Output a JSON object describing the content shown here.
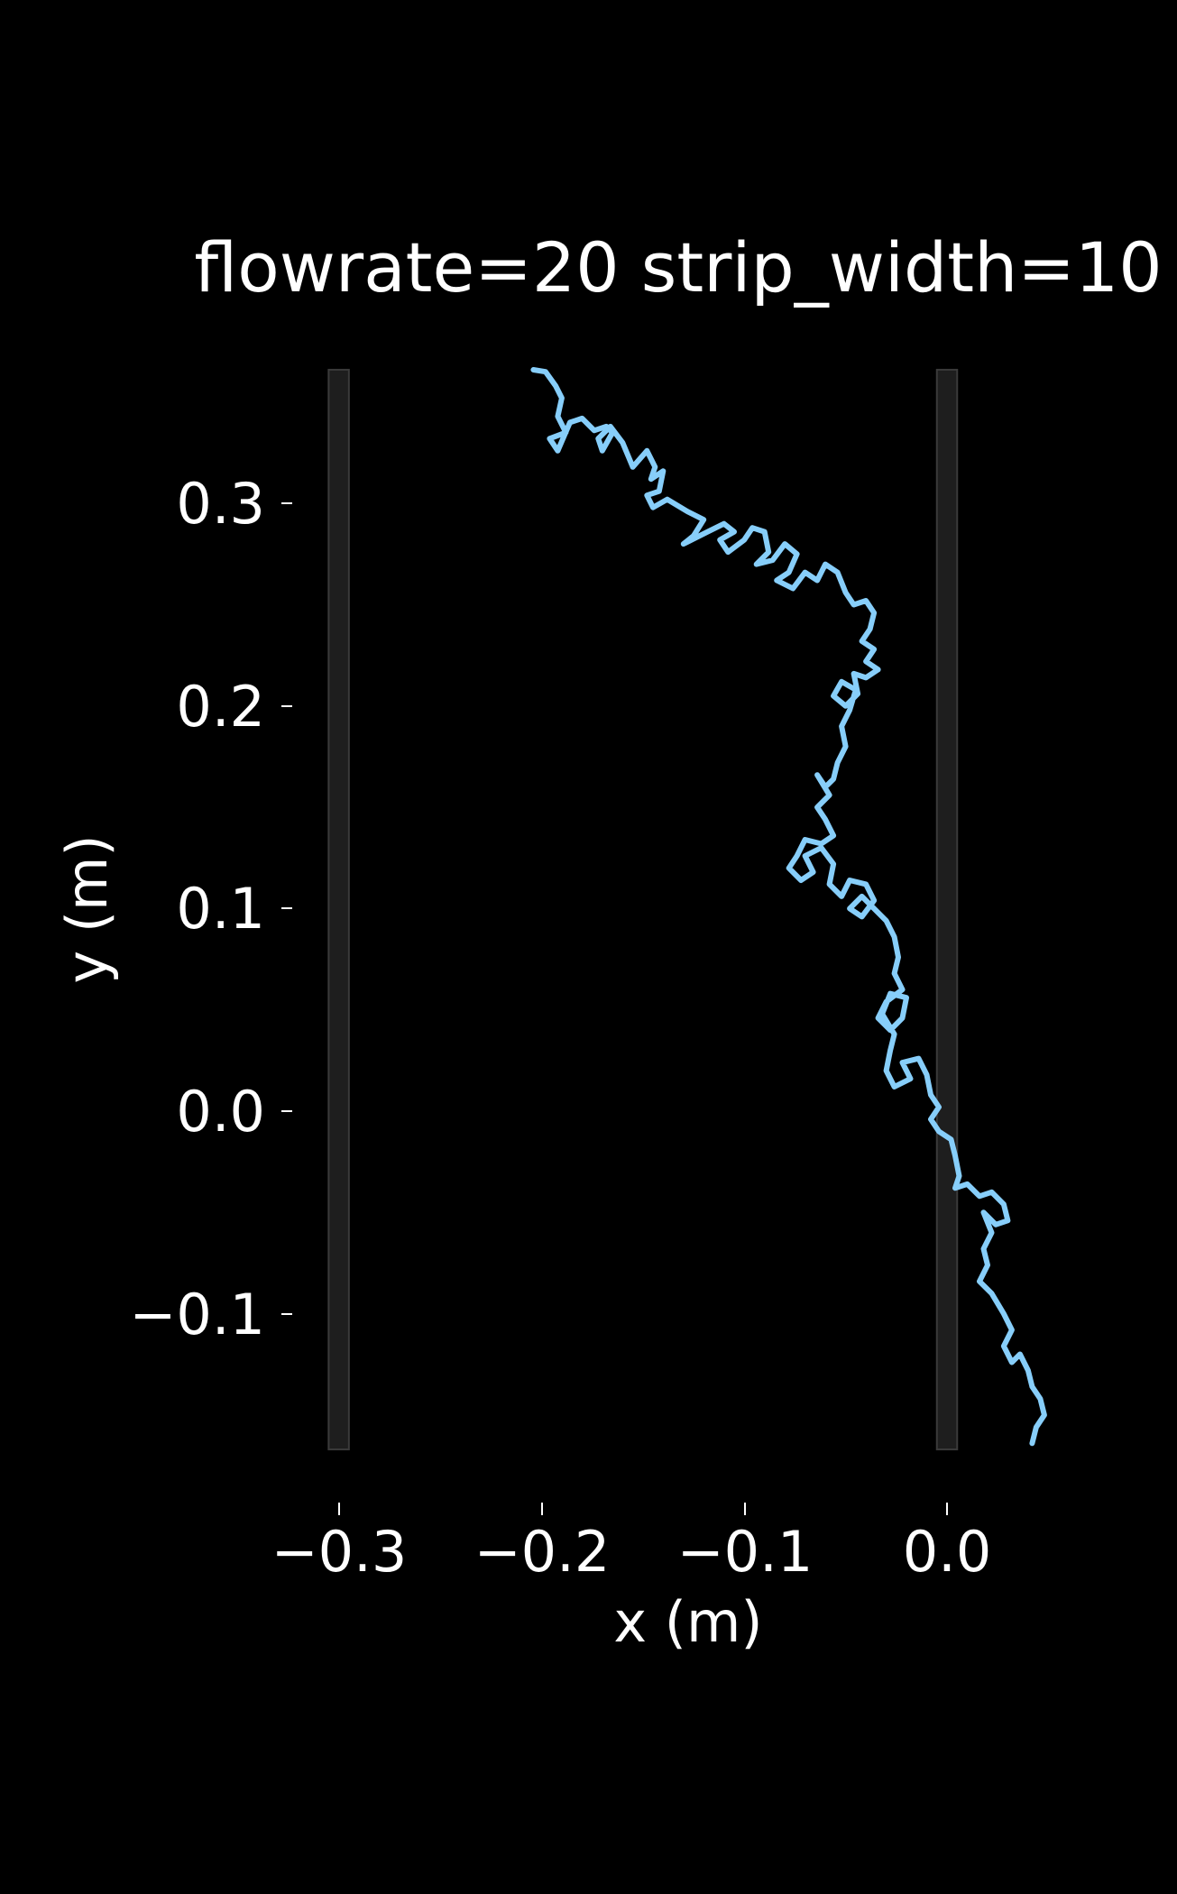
{
  "chart_data": {
    "type": "line",
    "title": "flowrate=20 strip_width=10",
    "xlabel": "x (m)",
    "ylabel": "y (m)",
    "xlim": [
      -0.3,
      0.05
    ],
    "ylim": [
      -0.167,
      0.368
    ],
    "grid": false,
    "x_ticks": [
      "−0.3",
      "−0.2",
      "−0.1",
      "0.0"
    ],
    "y_ticks": [
      "0.3",
      "0.2",
      "0.1",
      "0.0",
      "−0.1"
    ],
    "strips": [
      {
        "x_center": -0.3,
        "width": 0.01,
        "y_range": [
          -0.167,
          0.366
        ]
      },
      {
        "x_center": 0.0,
        "width": 0.01,
        "y_range": [
          -0.167,
          0.366
        ]
      }
    ],
    "series": [
      {
        "color": "#87cefa",
        "points": [
          [
            -0.204,
            0.366
          ],
          [
            -0.198,
            0.365
          ],
          [
            -0.193,
            0.358
          ],
          [
            -0.19,
            0.352
          ],
          [
            -0.192,
            0.343
          ],
          [
            -0.188,
            0.335
          ],
          [
            -0.196,
            0.332
          ],
          [
            -0.192,
            0.326
          ],
          [
            -0.186,
            0.34
          ],
          [
            -0.18,
            0.342
          ],
          [
            -0.174,
            0.336
          ],
          [
            -0.168,
            0.338
          ],
          [
            -0.165,
            0.335
          ],
          [
            -0.17,
            0.326
          ],
          [
            -0.172,
            0.332
          ],
          [
            -0.166,
            0.338
          ],
          [
            -0.16,
            0.33
          ],
          [
            -0.155,
            0.318
          ],
          [
            -0.148,
            0.326
          ],
          [
            -0.144,
            0.318
          ],
          [
            -0.146,
            0.312
          ],
          [
            -0.14,
            0.316
          ],
          [
            -0.142,
            0.306
          ],
          [
            -0.148,
            0.304
          ],
          [
            -0.145,
            0.298
          ],
          [
            -0.138,
            0.302
          ],
          [
            -0.128,
            0.296
          ],
          [
            -0.12,
            0.292
          ],
          [
            -0.125,
            0.284
          ],
          [
            -0.13,
            0.28
          ],
          [
            -0.118,
            0.286
          ],
          [
            -0.11,
            0.29
          ],
          [
            -0.105,
            0.286
          ],
          [
            -0.112,
            0.282
          ],
          [
            -0.108,
            0.276
          ],
          [
            -0.1,
            0.282
          ],
          [
            -0.096,
            0.288
          ],
          [
            -0.09,
            0.286
          ],
          [
            -0.088,
            0.276
          ],
          [
            -0.094,
            0.27
          ],
          [
            -0.086,
            0.272
          ],
          [
            -0.08,
            0.28
          ],
          [
            -0.074,
            0.275
          ],
          [
            -0.078,
            0.266
          ],
          [
            -0.084,
            0.262
          ],
          [
            -0.076,
            0.258
          ],
          [
            -0.07,
            0.266
          ],
          [
            -0.064,
            0.262
          ],
          [
            -0.06,
            0.27
          ],
          [
            -0.054,
            0.266
          ],
          [
            -0.05,
            0.256
          ],
          [
            -0.046,
            0.25
          ],
          [
            -0.04,
            0.252
          ],
          [
            -0.036,
            0.246
          ],
          [
            -0.038,
            0.238
          ],
          [
            -0.042,
            0.232
          ],
          [
            -0.036,
            0.228
          ],
          [
            -0.04,
            0.222
          ],
          [
            -0.034,
            0.218
          ],
          [
            -0.04,
            0.214
          ],
          [
            -0.046,
            0.216
          ],
          [
            -0.044,
            0.206
          ],
          [
            -0.05,
            0.2
          ],
          [
            -0.056,
            0.205
          ],
          [
            -0.052,
            0.212
          ],
          [
            -0.045,
            0.208
          ],
          [
            -0.048,
            0.198
          ],
          [
            -0.052,
            0.19
          ],
          [
            -0.05,
            0.18
          ],
          [
            -0.054,
            0.172
          ],
          [
            -0.056,
            0.164
          ],
          [
            -0.06,
            0.16
          ],
          [
            -0.064,
            0.166
          ],
          [
            -0.058,
            0.156
          ],
          [
            -0.064,
            0.15
          ],
          [
            -0.06,
            0.144
          ],
          [
            -0.056,
            0.136
          ],
          [
            -0.062,
            0.132
          ],
          [
            -0.07,
            0.134
          ],
          [
            -0.074,
            0.126
          ],
          [
            -0.078,
            0.12
          ],
          [
            -0.072,
            0.114
          ],
          [
            -0.066,
            0.118
          ],
          [
            -0.07,
            0.126
          ],
          [
            -0.062,
            0.13
          ],
          [
            -0.056,
            0.122
          ],
          [
            -0.058,
            0.112
          ],
          [
            -0.052,
            0.106
          ],
          [
            -0.048,
            0.114
          ],
          [
            -0.04,
            0.112
          ],
          [
            -0.036,
            0.104
          ],
          [
            -0.042,
            0.096
          ],
          [
            -0.048,
            0.1
          ],
          [
            -0.042,
            0.106
          ],
          [
            -0.036,
            0.1
          ],
          [
            -0.03,
            0.094
          ],
          [
            -0.026,
            0.086
          ],
          [
            -0.024,
            0.076
          ],
          [
            -0.026,
            0.068
          ],
          [
            -0.022,
            0.06
          ],
          [
            -0.03,
            0.054
          ],
          [
            -0.034,
            0.046
          ],
          [
            -0.028,
            0.04
          ],
          [
            -0.022,
            0.046
          ],
          [
            -0.02,
            0.056
          ],
          [
            -0.028,
            0.058
          ],
          [
            -0.032,
            0.048
          ],
          [
            -0.026,
            0.038
          ],
          [
            -0.028,
            0.03
          ],
          [
            -0.03,
            0.02
          ],
          [
            -0.026,
            0.012
          ],
          [
            -0.018,
            0.016
          ],
          [
            -0.022,
            0.024
          ],
          [
            -0.014,
            0.026
          ],
          [
            -0.01,
            0.018
          ],
          [
            -0.008,
            0.008
          ],
          [
            -0.004,
            0.002
          ],
          [
            -0.008,
            -0.004
          ],
          [
            -0.004,
            -0.01
          ],
          [
            0.002,
            -0.014
          ],
          [
            0.004,
            -0.022
          ],
          [
            0.006,
            -0.032
          ],
          [
            0.004,
            -0.038
          ],
          [
            0.01,
            -0.036
          ],
          [
            0.016,
            -0.042
          ],
          [
            0.022,
            -0.04
          ],
          [
            0.028,
            -0.046
          ],
          [
            0.03,
            -0.054
          ],
          [
            0.024,
            -0.056
          ],
          [
            0.018,
            -0.05
          ],
          [
            0.022,
            -0.06
          ],
          [
            0.018,
            -0.068
          ],
          [
            0.02,
            -0.076
          ],
          [
            0.016,
            -0.084
          ],
          [
            0.022,
            -0.09
          ],
          [
            0.028,
            -0.1
          ],
          [
            0.032,
            -0.108
          ],
          [
            0.028,
            -0.116
          ],
          [
            0.032,
            -0.124
          ],
          [
            0.036,
            -0.12
          ],
          [
            0.04,
            -0.128
          ],
          [
            0.042,
            -0.136
          ],
          [
            0.046,
            -0.142
          ],
          [
            0.048,
            -0.15
          ],
          [
            0.044,
            -0.156
          ],
          [
            0.042,
            -0.164
          ]
        ]
      }
    ]
  }
}
